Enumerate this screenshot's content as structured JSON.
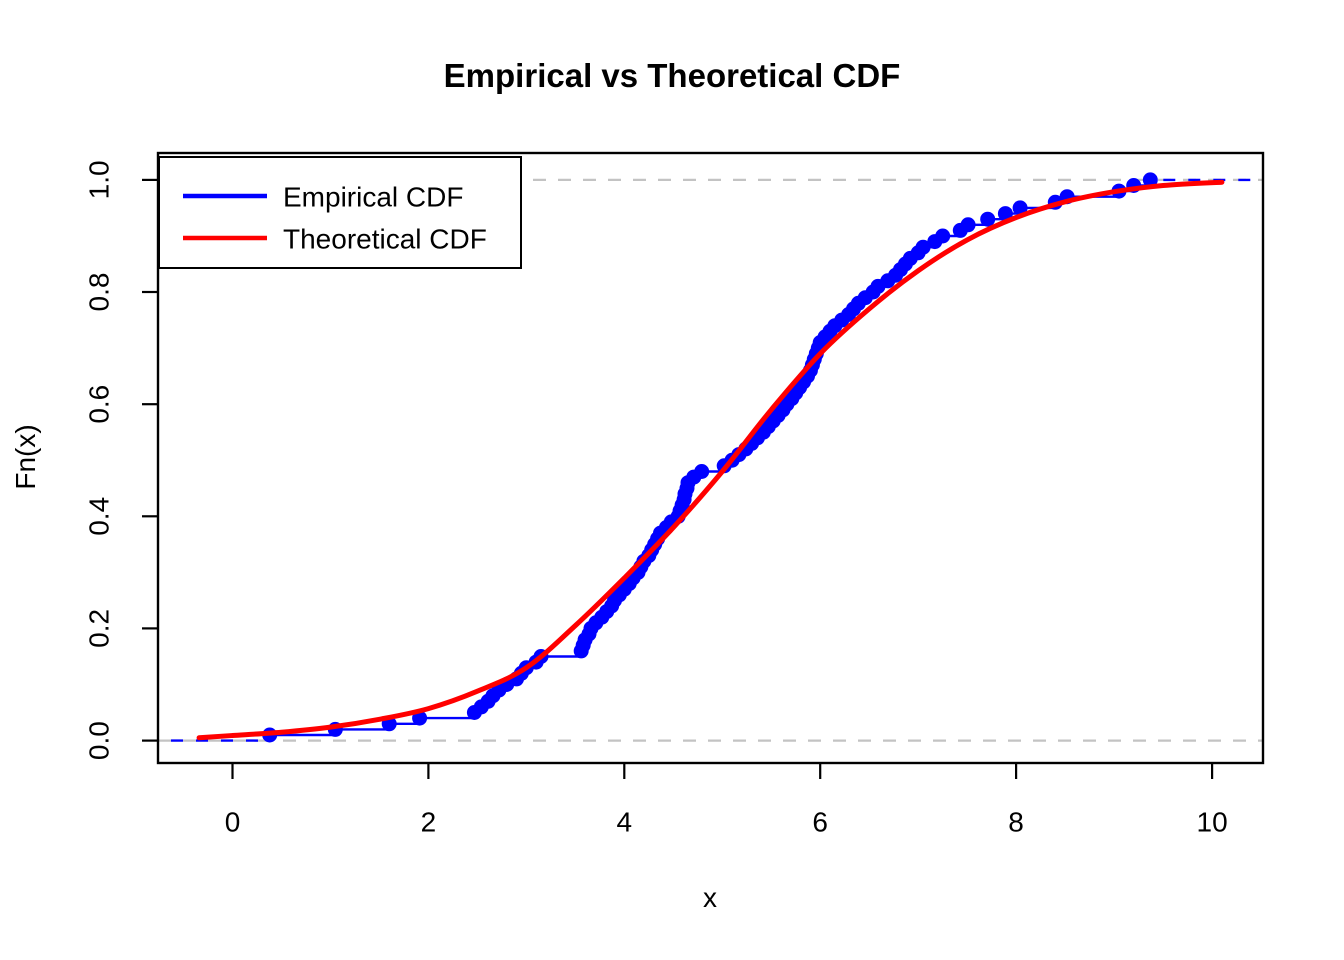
{
  "chart_data": {
    "type": "line",
    "title": "Empirical vs Theoretical CDF",
    "xlabel": "x",
    "ylabel": "Fn(x)",
    "xlim": [
      -0.76,
      10.52
    ],
    "ylim": [
      -0.04,
      1.048
    ],
    "x_ticks": [
      0,
      2,
      4,
      6,
      8,
      10
    ],
    "x_tick_labels": [
      "0",
      "2",
      "4",
      "6",
      "8",
      "10"
    ],
    "y_ticks": [
      0.0,
      0.2,
      0.4,
      0.6,
      0.8,
      1.0
    ],
    "y_tick_labels": [
      "0.0",
      "0.2",
      "0.4",
      "0.6",
      "0.8",
      "1.0"
    ],
    "grid": false,
    "background": "#ffffff",
    "axis_color": "#000000",
    "reference_lines": {
      "y": [
        0,
        1
      ],
      "style": "dashed",
      "color": "#c3c3c3"
    },
    "legend": {
      "position": "top-left",
      "entries": [
        {
          "label": "Empirical CDF",
          "color": "#0000ff"
        },
        {
          "label": "Theoretical CDF",
          "color": "#ff0000"
        }
      ]
    },
    "series": [
      {
        "name": "Empirical CDF",
        "type": "ecdf",
        "color": "#0000ff",
        "n": 100,
        "sorted_sample": [
          0.38,
          1.05,
          1.6,
          1.91,
          2.47,
          2.54,
          2.61,
          2.66,
          2.72,
          2.8,
          2.9,
          2.95,
          3.0,
          3.1,
          3.15,
          3.56,
          3.58,
          3.6,
          3.64,
          3.66,
          3.71,
          3.77,
          3.82,
          3.87,
          3.9,
          3.95,
          4.0,
          4.05,
          4.09,
          4.14,
          4.17,
          4.2,
          4.25,
          4.28,
          4.31,
          4.34,
          4.37,
          4.43,
          4.48,
          4.55,
          4.57,
          4.59,
          4.61,
          4.62,
          4.64,
          4.65,
          4.71,
          4.79,
          5.02,
          5.1,
          5.17,
          5.24,
          5.3,
          5.36,
          5.42,
          5.47,
          5.52,
          5.57,
          5.62,
          5.66,
          5.71,
          5.75,
          5.79,
          5.83,
          5.87,
          5.9,
          5.92,
          5.94,
          5.96,
          5.98,
          6.0,
          6.05,
          6.1,
          6.15,
          6.22,
          6.29,
          6.34,
          6.39,
          6.46,
          6.54,
          6.59,
          6.69,
          6.77,
          6.82,
          6.87,
          6.92,
          7.0,
          7.05,
          7.17,
          7.25,
          7.43,
          7.51,
          7.71,
          7.89,
          8.04,
          8.4,
          8.52,
          9.05,
          9.2,
          9.37
        ]
      },
      {
        "name": "Theoretical CDF",
        "type": "curve",
        "color": "#ff0000",
        "x": [
          -0.34,
          0,
          0.5,
          1,
          1.5,
          2,
          2.5,
          3,
          3.5,
          4,
          4.5,
          5,
          5.5,
          6,
          6.5,
          7,
          7.5,
          8,
          8.5,
          9,
          9.5,
          10.1
        ],
        "y": [
          0.005,
          0.009,
          0.015,
          0.024,
          0.038,
          0.057,
          0.088,
          0.13,
          0.205,
          0.29,
          0.38,
          0.48,
          0.59,
          0.69,
          0.77,
          0.838,
          0.893,
          0.933,
          0.961,
          0.979,
          0.99,
          0.996
        ]
      }
    ]
  }
}
